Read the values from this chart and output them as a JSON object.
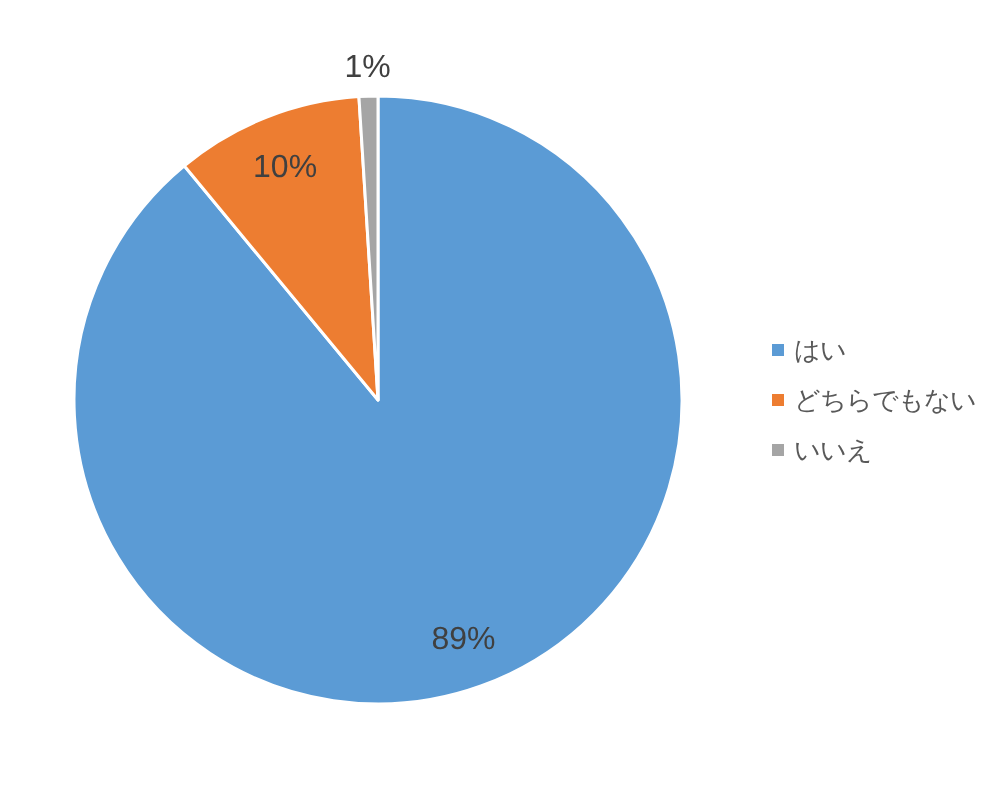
{
  "chart_data": {
    "type": "pie",
    "categories": [
      "はい",
      "どちらでもない",
      "いいえ"
    ],
    "values": [
      89,
      10,
      1
    ],
    "colors": [
      "#5b9bd5",
      "#ed7d31",
      "#a5a5a5"
    ],
    "value_labels": [
      "89%",
      "10%",
      "1%"
    ],
    "legend": "right"
  }
}
